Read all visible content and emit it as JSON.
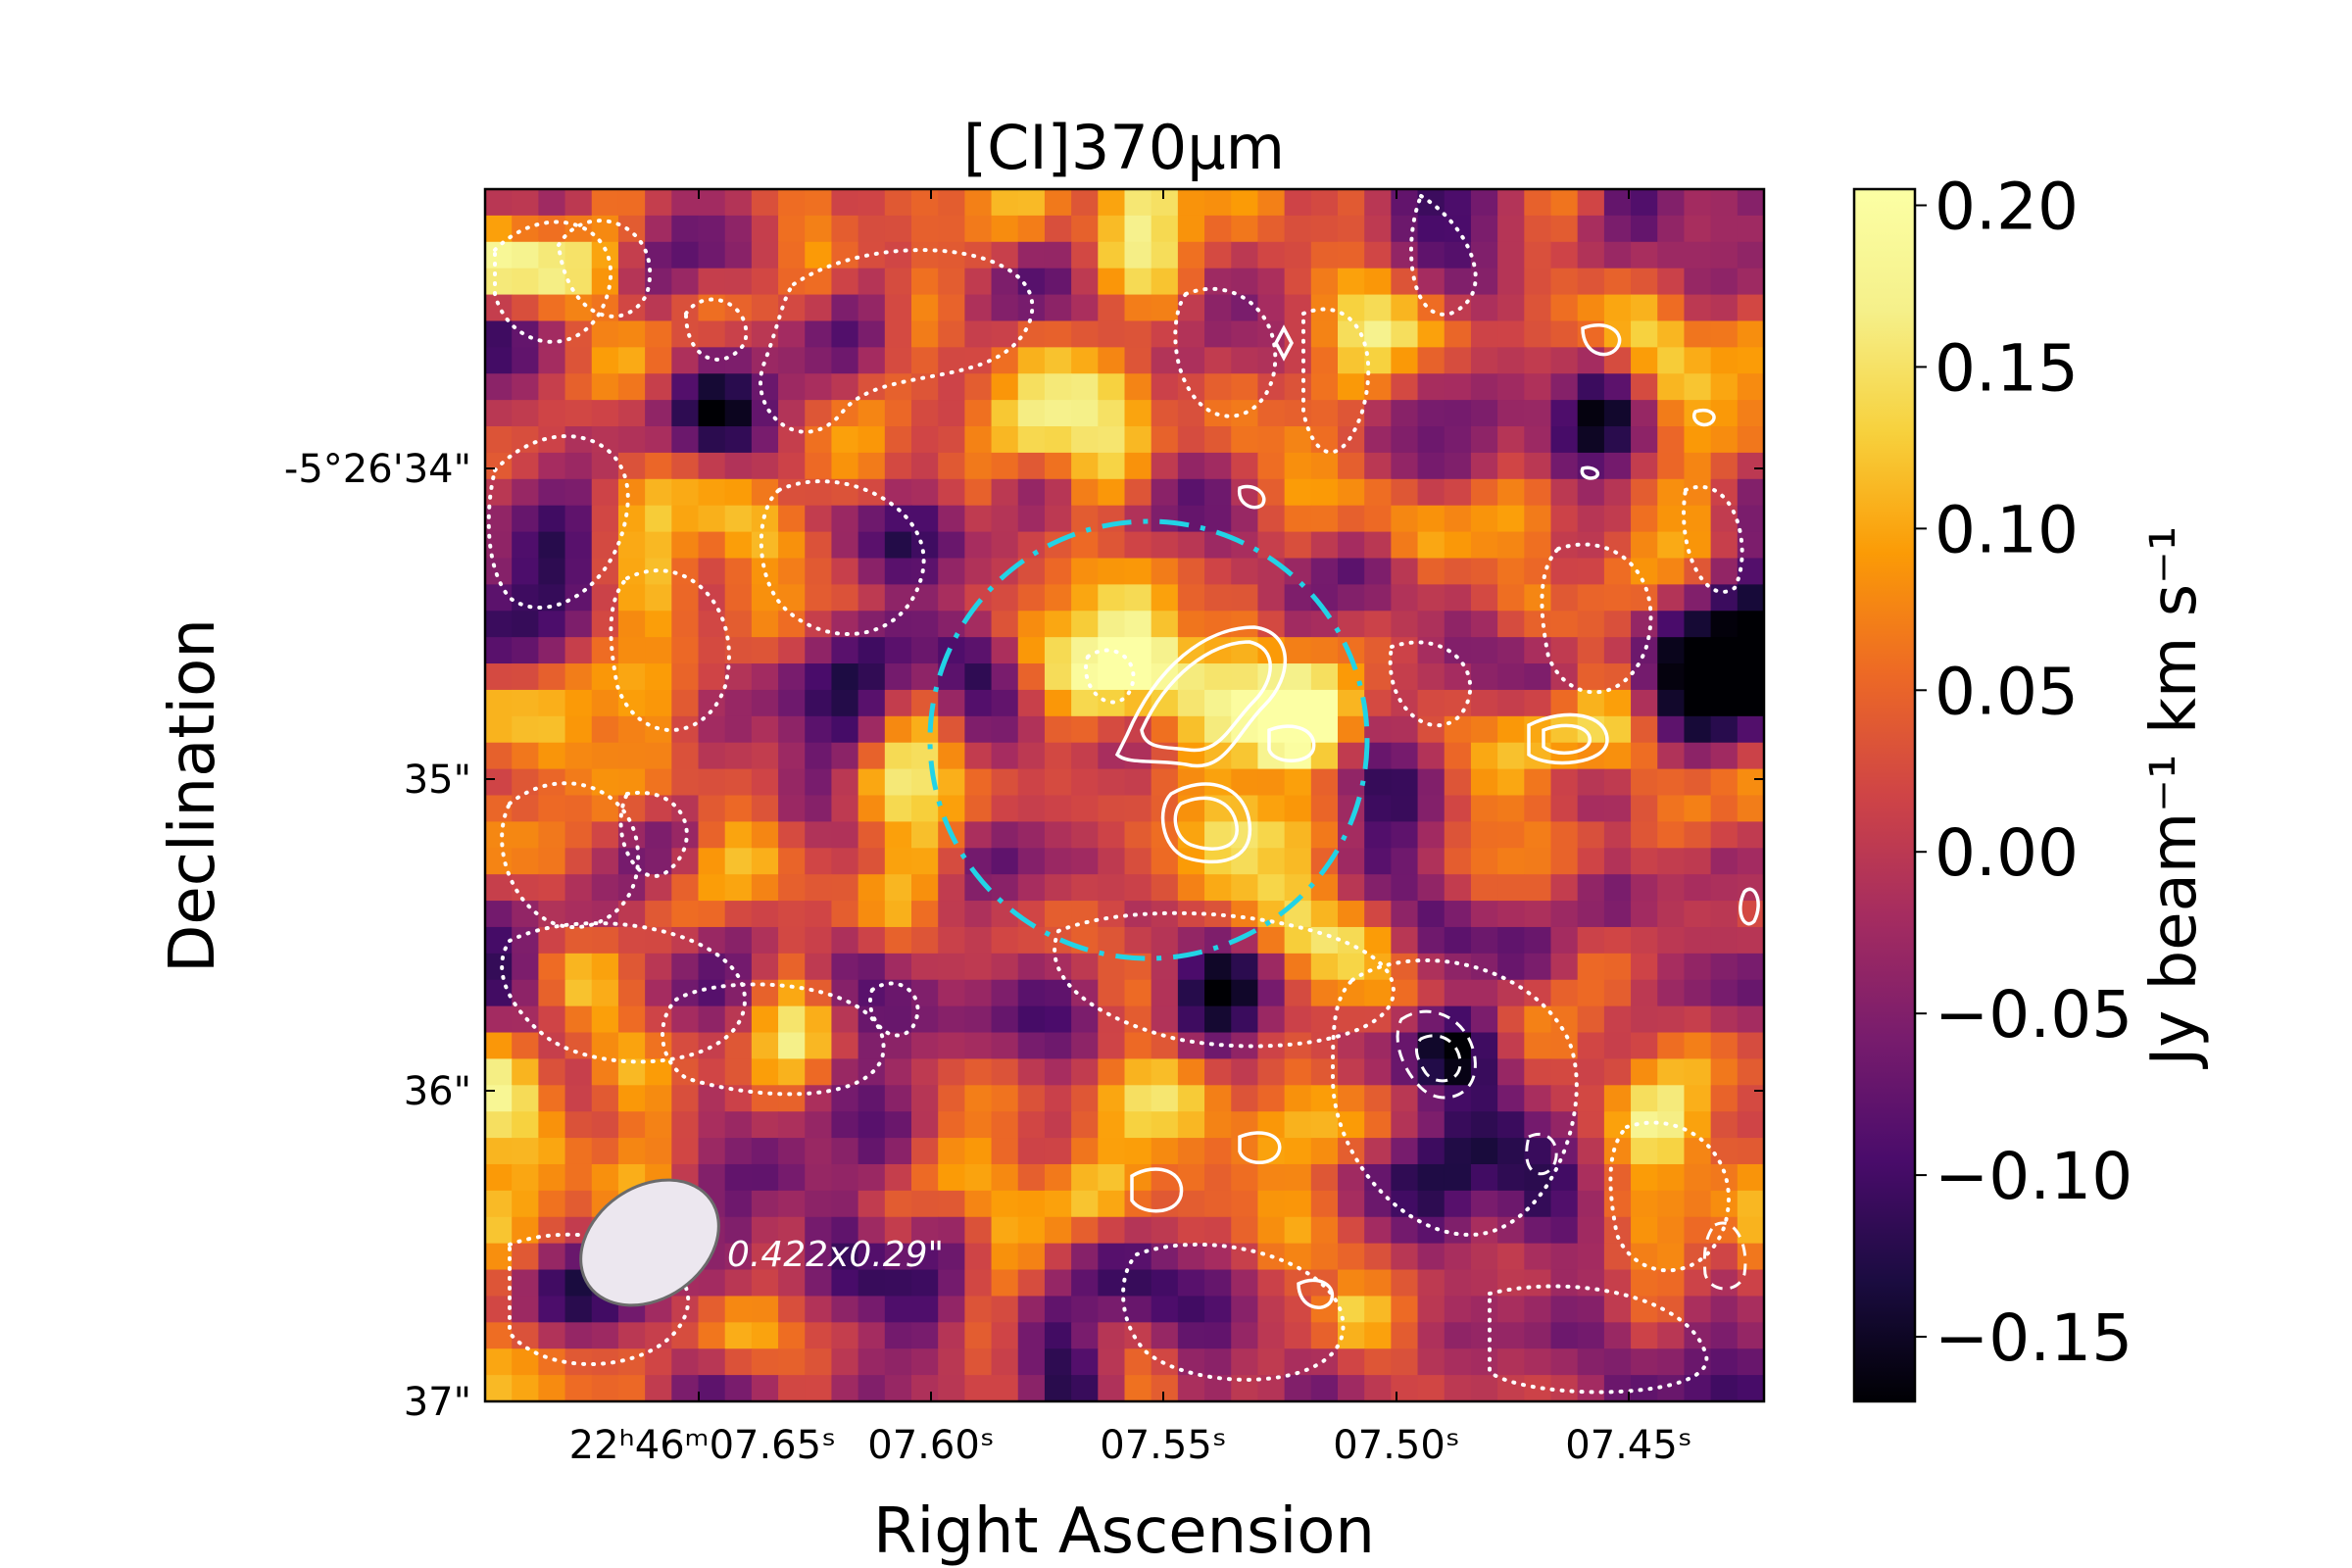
{
  "chart_data": {
    "type": "heatmap",
    "title": "[CI]370μm",
    "xlabel": "Right Ascension",
    "ylabel": "Declination",
    "colorbar_label": "Jy beam⁻¹ km s⁻¹",
    "colormap": "inferno",
    "clim": [
      -0.17,
      0.205
    ],
    "colorbar_ticks": [
      {
        "value": 0.2,
        "label": "0.20"
      },
      {
        "value": 0.15,
        "label": "0.15"
      },
      {
        "value": 0.1,
        "label": "0.10"
      },
      {
        "value": 0.05,
        "label": "0.05"
      },
      {
        "value": 0.0,
        "label": "0.00"
      },
      {
        "value": -0.05,
        "label": "−0.05"
      },
      {
        "value": -0.1,
        "label": "−0.10"
      },
      {
        "value": -0.15,
        "label": "−0.15"
      }
    ],
    "x_ticks": [
      {
        "label": "22ʰ46ᵐ07.65ˢ"
      },
      {
        "label": "07.60ˢ"
      },
      {
        "label": "07.55ˢ"
      },
      {
        "label": "07.50ˢ"
      },
      {
        "label": "07.45ˢ"
      }
    ],
    "y_ticks": [
      {
        "label": "-5°26'34\""
      },
      {
        "label": "35\""
      },
      {
        "label": "36\""
      },
      {
        "label": "37\""
      }
    ],
    "beam_label": "0.422x0.29\"",
    "aperture_color": "#22d3e6",
    "contour_color": "#ffffff",
    "grid": false
  }
}
